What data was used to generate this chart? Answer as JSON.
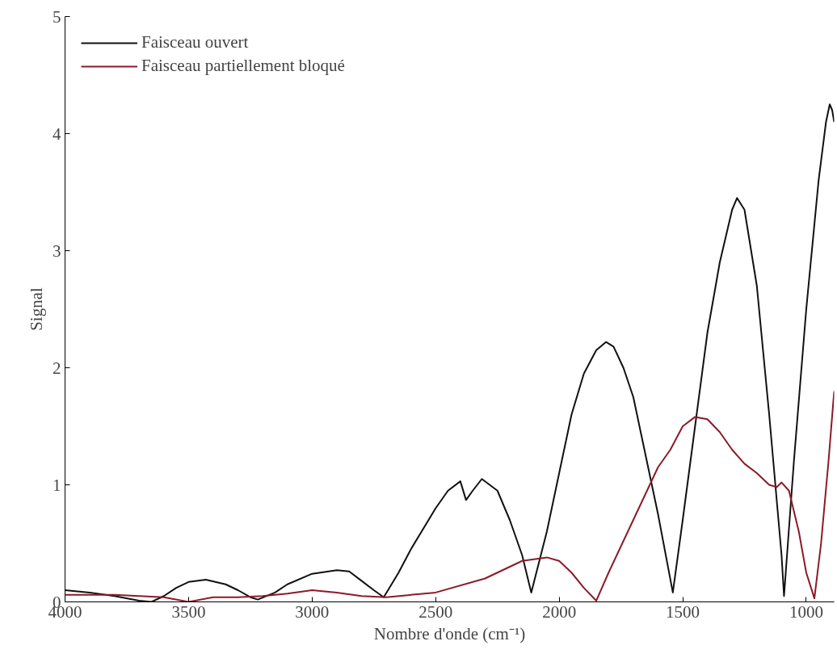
{
  "chart_data": {
    "type": "line",
    "xlabel": "Nombre d'onde (cm⁻¹)",
    "ylabel": "Signal",
    "xlim": [
      4000,
      887
    ],
    "ylim": [
      0,
      5
    ],
    "xticks": [
      4000,
      3500,
      3000,
      2500,
      2000,
      1500,
      1000
    ],
    "yticks": [
      0,
      1,
      2,
      3,
      4,
      5
    ],
    "grid": false,
    "legend": "top left",
    "marker": "none",
    "line_style": "solid",
    "series": [
      {
        "name": "Faisceau ouvert",
        "color": "#111111",
        "x": [
          4000,
          3900,
          3800,
          3700,
          3650,
          3600,
          3550,
          3500,
          3430,
          3350,
          3300,
          3250,
          3220,
          3150,
          3100,
          3000,
          2900,
          2850,
          2800,
          2750,
          2710,
          2650,
          2600,
          2500,
          2450,
          2400,
          2377,
          2350,
          2313,
          2250,
          2200,
          2150,
          2113,
          2050,
          2000,
          1950,
          1900,
          1850,
          1810,
          1780,
          1740,
          1700,
          1650,
          1600,
          1540,
          1500,
          1450,
          1400,
          1350,
          1300,
          1280,
          1250,
          1200,
          1150,
          1100,
          1090,
          1050,
          1000,
          950,
          920,
          905,
          895,
          887
        ],
        "values": [
          0.1,
          0.08,
          0.05,
          0.01,
          0.0,
          0.05,
          0.12,
          0.17,
          0.19,
          0.15,
          0.1,
          0.04,
          0.02,
          0.08,
          0.15,
          0.24,
          0.27,
          0.26,
          0.18,
          0.1,
          0.04,
          0.25,
          0.45,
          0.8,
          0.95,
          1.03,
          0.87,
          0.95,
          1.05,
          0.95,
          0.7,
          0.4,
          0.08,
          0.6,
          1.1,
          1.6,
          1.95,
          2.15,
          2.22,
          2.18,
          2.0,
          1.75,
          1.25,
          0.75,
          0.08,
          0.7,
          1.5,
          2.3,
          2.9,
          3.35,
          3.45,
          3.35,
          2.7,
          1.6,
          0.4,
          0.05,
          1.2,
          2.5,
          3.6,
          4.1,
          4.25,
          4.2,
          4.1
        ]
      },
      {
        "name": "Faisceau partiellement bloqué",
        "color": "#8b1a2a",
        "x": [
          4000,
          3800,
          3600,
          3500,
          3400,
          3300,
          3200,
          3100,
          3000,
          2900,
          2800,
          2700,
          2500,
          2300,
          2150,
          2050,
          2000,
          1950,
          1900,
          1850,
          1800,
          1700,
          1600,
          1550,
          1500,
          1450,
          1400,
          1350,
          1300,
          1250,
          1200,
          1150,
          1120,
          1100,
          1070,
          1030,
          1000,
          967,
          940,
          910,
          887
        ],
        "values": [
          0.06,
          0.06,
          0.04,
          0.0,
          0.04,
          0.04,
          0.05,
          0.07,
          0.1,
          0.08,
          0.05,
          0.04,
          0.08,
          0.2,
          0.35,
          0.38,
          0.35,
          0.25,
          0.12,
          0.01,
          0.25,
          0.7,
          1.15,
          1.3,
          1.5,
          1.58,
          1.56,
          1.45,
          1.3,
          1.18,
          1.1,
          1.0,
          0.98,
          1.02,
          0.95,
          0.6,
          0.25,
          0.03,
          0.5,
          1.2,
          1.8
        ]
      }
    ]
  }
}
